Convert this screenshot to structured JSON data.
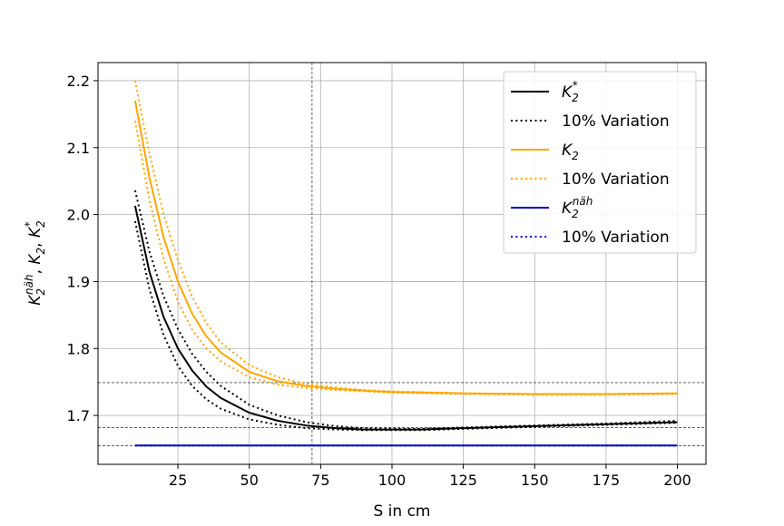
{
  "chart_data": {
    "type": "line",
    "title": "",
    "xlabel": "S in cm",
    "ylabel": {
      "a": "K",
      "a_sub": "2",
      "a_sup": "näh",
      "b": "K",
      "b_sub": "2",
      "c": "K",
      "c_sub": "2",
      "c_sup": "*"
    },
    "xlim": [
      -3,
      210
    ],
    "ylim": [
      1.627,
      2.227
    ],
    "xticks": [
      25,
      50,
      75,
      100,
      125,
      150,
      175,
      200
    ],
    "yticks": [
      1.7,
      1.8,
      1.9,
      2.0,
      2.1,
      2.2
    ],
    "xtick_labels": [
      "25",
      "50",
      "75",
      "100",
      "125",
      "150",
      "175",
      "200"
    ],
    "ytick_labels": [
      "1.7",
      "1.8",
      "1.9",
      "2.0",
      "2.1",
      "2.2"
    ],
    "grid": true,
    "legend_position": "top-right",
    "reference_lines": {
      "vertical_x": 72,
      "horizontal_y": [
        1.749,
        1.682,
        1.655
      ]
    },
    "series": [
      {
        "name": "K2*",
        "legend_label": {
          "base": "K",
          "sub": "2",
          "sup": "*"
        },
        "color": "#000000",
        "style": "solid",
        "x": [
          10,
          15,
          20,
          25,
          30,
          35,
          40,
          50,
          60,
          70,
          80,
          90,
          100,
          110,
          125,
          150,
          175,
          200
        ],
        "y": [
          2.013,
          1.915,
          1.847,
          1.8,
          1.767,
          1.743,
          1.726,
          1.704,
          1.692,
          1.685,
          1.681,
          1.679,
          1.679,
          1.679,
          1.681,
          1.684,
          1.687,
          1.69
        ]
      },
      {
        "name": "K2* +10%",
        "color": "#000000",
        "style": "dotted",
        "x": [
          10,
          15,
          20,
          25,
          30,
          35,
          40,
          50,
          60,
          70,
          80,
          90,
          100,
          110,
          125,
          150,
          175,
          200
        ],
        "y": [
          2.036,
          1.945,
          1.878,
          1.829,
          1.792,
          1.765,
          1.744,
          1.716,
          1.7,
          1.69,
          1.684,
          1.681,
          1.68,
          1.68,
          1.682,
          1.685,
          1.688,
          1.692
        ]
      },
      {
        "name": "K2* -10%",
        "color": "#000000",
        "style": "dotted",
        "x": [
          10,
          15,
          20,
          25,
          30,
          35,
          40,
          50,
          60,
          70,
          80,
          90,
          100,
          110,
          125,
          150,
          175,
          200
        ],
        "y": [
          1.99,
          1.889,
          1.82,
          1.774,
          1.744,
          1.724,
          1.71,
          1.694,
          1.686,
          1.681,
          1.679,
          1.678,
          1.678,
          1.678,
          1.68,
          1.683,
          1.686,
          1.689
        ]
      },
      {
        "name": "K2",
        "legend_label": {
          "base": "K",
          "sub": "2",
          "sup": ""
        },
        "color": "#ffa500",
        "style": "solid",
        "x": [
          10,
          15,
          20,
          25,
          30,
          35,
          40,
          50,
          60,
          70,
          80,
          90,
          100,
          125,
          150,
          175,
          200
        ],
        "y": [
          2.17,
          2.056,
          1.966,
          1.9,
          1.852,
          1.818,
          1.794,
          1.765,
          1.751,
          1.744,
          1.74,
          1.737,
          1.735,
          1.733,
          1.732,
          1.732,
          1.733
        ]
      },
      {
        "name": "K2 +10%",
        "color": "#ffa500",
        "style": "dotted",
        "x": [
          10,
          15,
          20,
          25,
          30,
          35,
          40,
          50,
          60,
          70,
          80,
          90,
          100,
          125,
          150,
          175,
          200
        ],
        "y": [
          2.2,
          2.092,
          2.0,
          1.932,
          1.877,
          1.838,
          1.809,
          1.775,
          1.757,
          1.747,
          1.742,
          1.738,
          1.736,
          1.733,
          1.732,
          1.732,
          1.733
        ]
      },
      {
        "name": "K2 -10%",
        "color": "#ffa500",
        "style": "dotted",
        "x": [
          10,
          15,
          20,
          25,
          30,
          35,
          40,
          50,
          60,
          70,
          80,
          90,
          100,
          125,
          150,
          175,
          200
        ],
        "y": [
          2.14,
          2.022,
          1.934,
          1.87,
          1.828,
          1.8,
          1.781,
          1.757,
          1.746,
          1.741,
          1.738,
          1.736,
          1.734,
          1.732,
          1.731,
          1.731,
          1.732
        ]
      },
      {
        "name": "K2näh",
        "legend_label": {
          "base": "K",
          "sub": "2",
          "sup": "näh"
        },
        "color": "#0000cc",
        "style": "solid",
        "x": [
          10,
          200
        ],
        "y": [
          1.655,
          1.655
        ]
      },
      {
        "name": "K2näh ±10%",
        "color": "#0000cc",
        "style": "dotted",
        "x": [
          10,
          200
        ],
        "y": [
          1.655,
          1.655
        ]
      }
    ],
    "legend": [
      {
        "kind": "math",
        "series": 0
      },
      {
        "kind": "text",
        "text": "10% Variation",
        "series": 1
      },
      {
        "kind": "math",
        "series": 3
      },
      {
        "kind": "text",
        "text": "10% Variation",
        "series": 4
      },
      {
        "kind": "math",
        "series": 6
      },
      {
        "kind": "text",
        "text": "10% Variation",
        "series": 7
      }
    ]
  }
}
